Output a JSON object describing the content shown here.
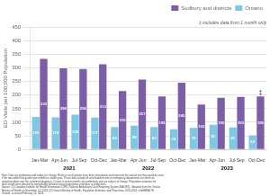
{
  "chart_data": {
    "type": "bar",
    "categories": [
      "Jan-Mar",
      "Apr-Jun",
      "Jul-Sep",
      "Oct-Dec",
      "Jan-Mar",
      "Apr-Jun",
      "Jul-Sep",
      "Oct-Dec",
      "Jan-Mar",
      "Apr-Jun",
      "Jul-Sep",
      "Oct-Dec"
    ],
    "groups": [
      "2021",
      "2022",
      "2023"
    ],
    "series": [
      {
        "name": "Sudbury and districts",
        "color": "#7B5EA7",
        "values": [
          333,
          298,
          296,
          313,
          215,
          257,
          195,
          245,
          165,
          190,
          193,
          195
        ]
      },
      {
        "name": "Ontario",
        "color": "#7EC8E3",
        "values": [
          120,
          118,
          128,
          117,
          83,
          88,
          83,
          74,
          79,
          91,
          81,
          52
        ]
      }
    ],
    "ylabel": "ED Visits per 100,000 Population",
    "ylim": [
      0,
      450
    ],
    "yticks": [
      0,
      50,
      100,
      150,
      200,
      250,
      300,
      350,
      400,
      450
    ],
    "grid": true,
    "legend": "upper right",
    "data_labels": true,
    "annotations": [
      {
        "text": "‡",
        "series": "Sudbury and districts",
        "index": 11
      },
      {
        "text": "‡ includes data from 1 month only"
      }
    ],
    "note": "Note: Data are preliminary and subject to change. Rates in each quarter have been annualized, and represent the annual rate that would be seen\nif the rate within that quarter persisted for a whole year. These data include all unscheduled visits to emergency departments for which an\nopioid overdose was the confirmed diagnosis. Counts in recent months are preliminary and are subject to change. Population estimates for\neach month were derived by interpolating between annual population estimates or projections.\nSource: (1) Canadian Institute for Health Information (CIHI), National Ambulatory Care Reporting System (NACRS). Obtained from the Ontario\nMinistry of Health on November 14, 2023. (2) Ontario Ministry of Health, Population Estimates and Projections 2020-2024, intelliHEALTH\nOntario, accessed Februray 10, 2023."
  }
}
